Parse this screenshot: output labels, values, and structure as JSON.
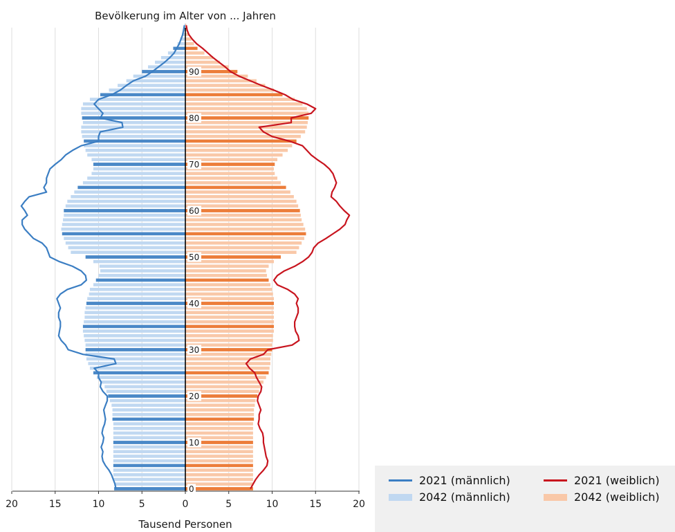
{
  "chart_data": {
    "type": "bar",
    "subtype": "population-pyramid",
    "title": "Bevölkerung im Alter von ... Jahren",
    "xlabel": "Tausend Personen",
    "x_ticks": [
      "20",
      "15",
      "10",
      "5",
      "0",
      "5",
      "10",
      "15",
      "20"
    ],
    "age_ticks": [
      "0",
      "10",
      "20",
      "30",
      "40",
      "50",
      "60",
      "70",
      "80",
      "90"
    ],
    "xlim": [
      -20,
      20
    ],
    "ylim": [
      0,
      100
    ],
    "ages": [
      0,
      1,
      2,
      3,
      4,
      5,
      6,
      7,
      8,
      9,
      10,
      11,
      12,
      13,
      14,
      15,
      16,
      17,
      18,
      19,
      20,
      21,
      22,
      23,
      24,
      25,
      26,
      27,
      28,
      29,
      30,
      31,
      32,
      33,
      34,
      35,
      36,
      37,
      38,
      39,
      40,
      41,
      42,
      43,
      44,
      45,
      46,
      47,
      48,
      49,
      50,
      51,
      52,
      53,
      54,
      55,
      56,
      57,
      58,
      59,
      60,
      61,
      62,
      63,
      64,
      65,
      66,
      67,
      68,
      69,
      70,
      71,
      72,
      73,
      74,
      75,
      76,
      77,
      78,
      79,
      80,
      81,
      82,
      83,
      84,
      85,
      86,
      87,
      88,
      89,
      90,
      91,
      92,
      93,
      94,
      95,
      96,
      97,
      98,
      99,
      100
    ],
    "series": [
      {
        "name": "2021 (männlich)",
        "kind": "line",
        "color": "#3b7ec3",
        "values": [
          8.0,
          8.1,
          8.3,
          8.5,
          8.8,
          9.2,
          9.5,
          9.6,
          9.5,
          9.7,
          9.5,
          9.4,
          9.6,
          9.5,
          9.3,
          9.2,
          9.3,
          9.4,
          9.2,
          9.0,
          9.0,
          9.5,
          9.8,
          9.7,
          10.0,
          10.0,
          10.5,
          8.0,
          8.2,
          11.8,
          13.5,
          13.8,
          14.3,
          14.6,
          14.5,
          14.4,
          14.4,
          14.6,
          14.6,
          14.4,
          14.6,
          14.8,
          14.4,
          13.6,
          12.0,
          11.4,
          11.5,
          12.0,
          13.0,
          14.5,
          15.6,
          15.8,
          16.0,
          16.5,
          17.5,
          18.0,
          18.5,
          18.8,
          18.8,
          18.2,
          18.5,
          18.9,
          18.5,
          18.0,
          16.0,
          16.3,
          16.0,
          16.0,
          15.8,
          15.6,
          15.0,
          14.3,
          13.8,
          13.0,
          12.0,
          10.0,
          10.0,
          9.8,
          7.2,
          7.3,
          9.8,
          9.5,
          10.0,
          10.5,
          10.0,
          8.5,
          7.5,
          6.8,
          6.0,
          4.6,
          3.8,
          3.1,
          2.4,
          1.8,
          1.3,
          1.0,
          0.7,
          0.5,
          0.3,
          0.2,
          0.1
        ]
      },
      {
        "name": "2042 (männlich)",
        "kind": "bar",
        "color": "#c0d8f1",
        "values": [
          8.2,
          8.2,
          8.3,
          8.3,
          8.3,
          8.3,
          8.3,
          8.3,
          8.3,
          8.3,
          8.3,
          8.3,
          8.3,
          8.3,
          8.3,
          8.4,
          8.4,
          8.4,
          8.5,
          8.7,
          8.9,
          9.1,
          9.3,
          9.8,
          10.2,
          10.6,
          11.0,
          11.2,
          11.4,
          11.5,
          11.5,
          11.5,
          11.6,
          11.7,
          11.8,
          11.8,
          11.7,
          11.6,
          11.6,
          11.5,
          11.4,
          11.3,
          11.1,
          11.0,
          10.6,
          10.3,
          10.0,
          9.8,
          9.9,
          10.6,
          11.5,
          13.2,
          13.5,
          13.8,
          14.0,
          14.2,
          14.3,
          14.2,
          14.1,
          14.0,
          14.0,
          13.8,
          13.6,
          13.2,
          12.8,
          12.4,
          11.8,
          11.3,
          10.8,
          10.6,
          10.6,
          10.8,
          11.3,
          11.5,
          11.7,
          11.7,
          11.9,
          12.0,
          12.0,
          11.8,
          11.9,
          12.0,
          12.0,
          11.8,
          11.0,
          9.8,
          8.8,
          7.8,
          6.8,
          6.0,
          5.0,
          4.3,
          3.5,
          2.8,
          2.0,
          1.4,
          0.9,
          0.6,
          0.4,
          0.2,
          0.1
        ]
      },
      {
        "name": "2021 (weiblich)",
        "kind": "line",
        "color": "#c8141e",
        "values": [
          7.5,
          7.8,
          8.1,
          8.5,
          9.0,
          9.4,
          9.5,
          9.3,
          9.2,
          9.1,
          9.0,
          9.0,
          8.9,
          8.6,
          8.4,
          8.5,
          8.5,
          8.7,
          8.5,
          8.3,
          8.4,
          8.7,
          8.8,
          8.5,
          8.2,
          8.0,
          7.4,
          7.0,
          7.5,
          9.0,
          9.5,
          12.3,
          13.1,
          13.0,
          12.7,
          12.6,
          12.6,
          12.8,
          13.0,
          13.0,
          12.8,
          13.0,
          12.6,
          11.8,
          10.6,
          10.2,
          10.6,
          11.4,
          12.6,
          13.5,
          14.2,
          14.6,
          14.8,
          15.3,
          16.2,
          17.0,
          17.8,
          18.4,
          18.6,
          18.9,
          18.3,
          17.8,
          17.4,
          16.8,
          16.9,
          17.2,
          17.4,
          17.2,
          17.0,
          16.6,
          16.0,
          15.2,
          14.5,
          14.0,
          13.5,
          12.0,
          10.0,
          9.0,
          8.5,
          12.2,
          12.2,
          14.5,
          15.0,
          14.0,
          12.4,
          11.5,
          10.2,
          8.8,
          7.5,
          6.2,
          5.2,
          4.6,
          3.9,
          3.2,
          2.6,
          2.0,
          1.3,
          0.8,
          0.4,
          0.2,
          0.1
        ]
      },
      {
        "name": "2042 (weiblich)",
        "kind": "bar",
        "color": "#f9c8a8",
        "values": [
          7.8,
          7.8,
          7.8,
          7.8,
          7.8,
          7.8,
          7.8,
          7.8,
          7.8,
          7.8,
          7.8,
          7.8,
          7.8,
          7.8,
          7.8,
          7.9,
          7.9,
          7.9,
          8.0,
          8.1,
          8.3,
          8.5,
          8.7,
          9.0,
          9.3,
          9.6,
          9.7,
          9.8,
          9.8,
          9.9,
          10.0,
          10.0,
          10.1,
          10.1,
          10.2,
          10.2,
          10.2,
          10.2,
          10.2,
          10.2,
          10.2,
          10.2,
          10.1,
          10.0,
          9.8,
          9.6,
          9.4,
          9.3,
          9.6,
          10.2,
          11.0,
          12.8,
          13.1,
          13.4,
          13.7,
          13.9,
          13.8,
          13.6,
          13.4,
          13.3,
          13.2,
          13.0,
          12.8,
          12.5,
          12.1,
          11.6,
          11.0,
          10.6,
          10.3,
          10.2,
          10.3,
          10.6,
          11.2,
          11.8,
          12.3,
          12.8,
          13.3,
          13.8,
          14.0,
          14.1,
          14.2,
          14.2,
          14.0,
          13.5,
          12.6,
          11.2,
          10.2,
          9.2,
          8.2,
          7.2,
          6.0,
          5.0,
          4.0,
          3.2,
          2.2,
          1.4,
          1.0,
          0.7,
          0.4,
          0.2,
          0.1
        ]
      }
    ],
    "grid": "vertical",
    "legend": "bottom-right"
  }
}
